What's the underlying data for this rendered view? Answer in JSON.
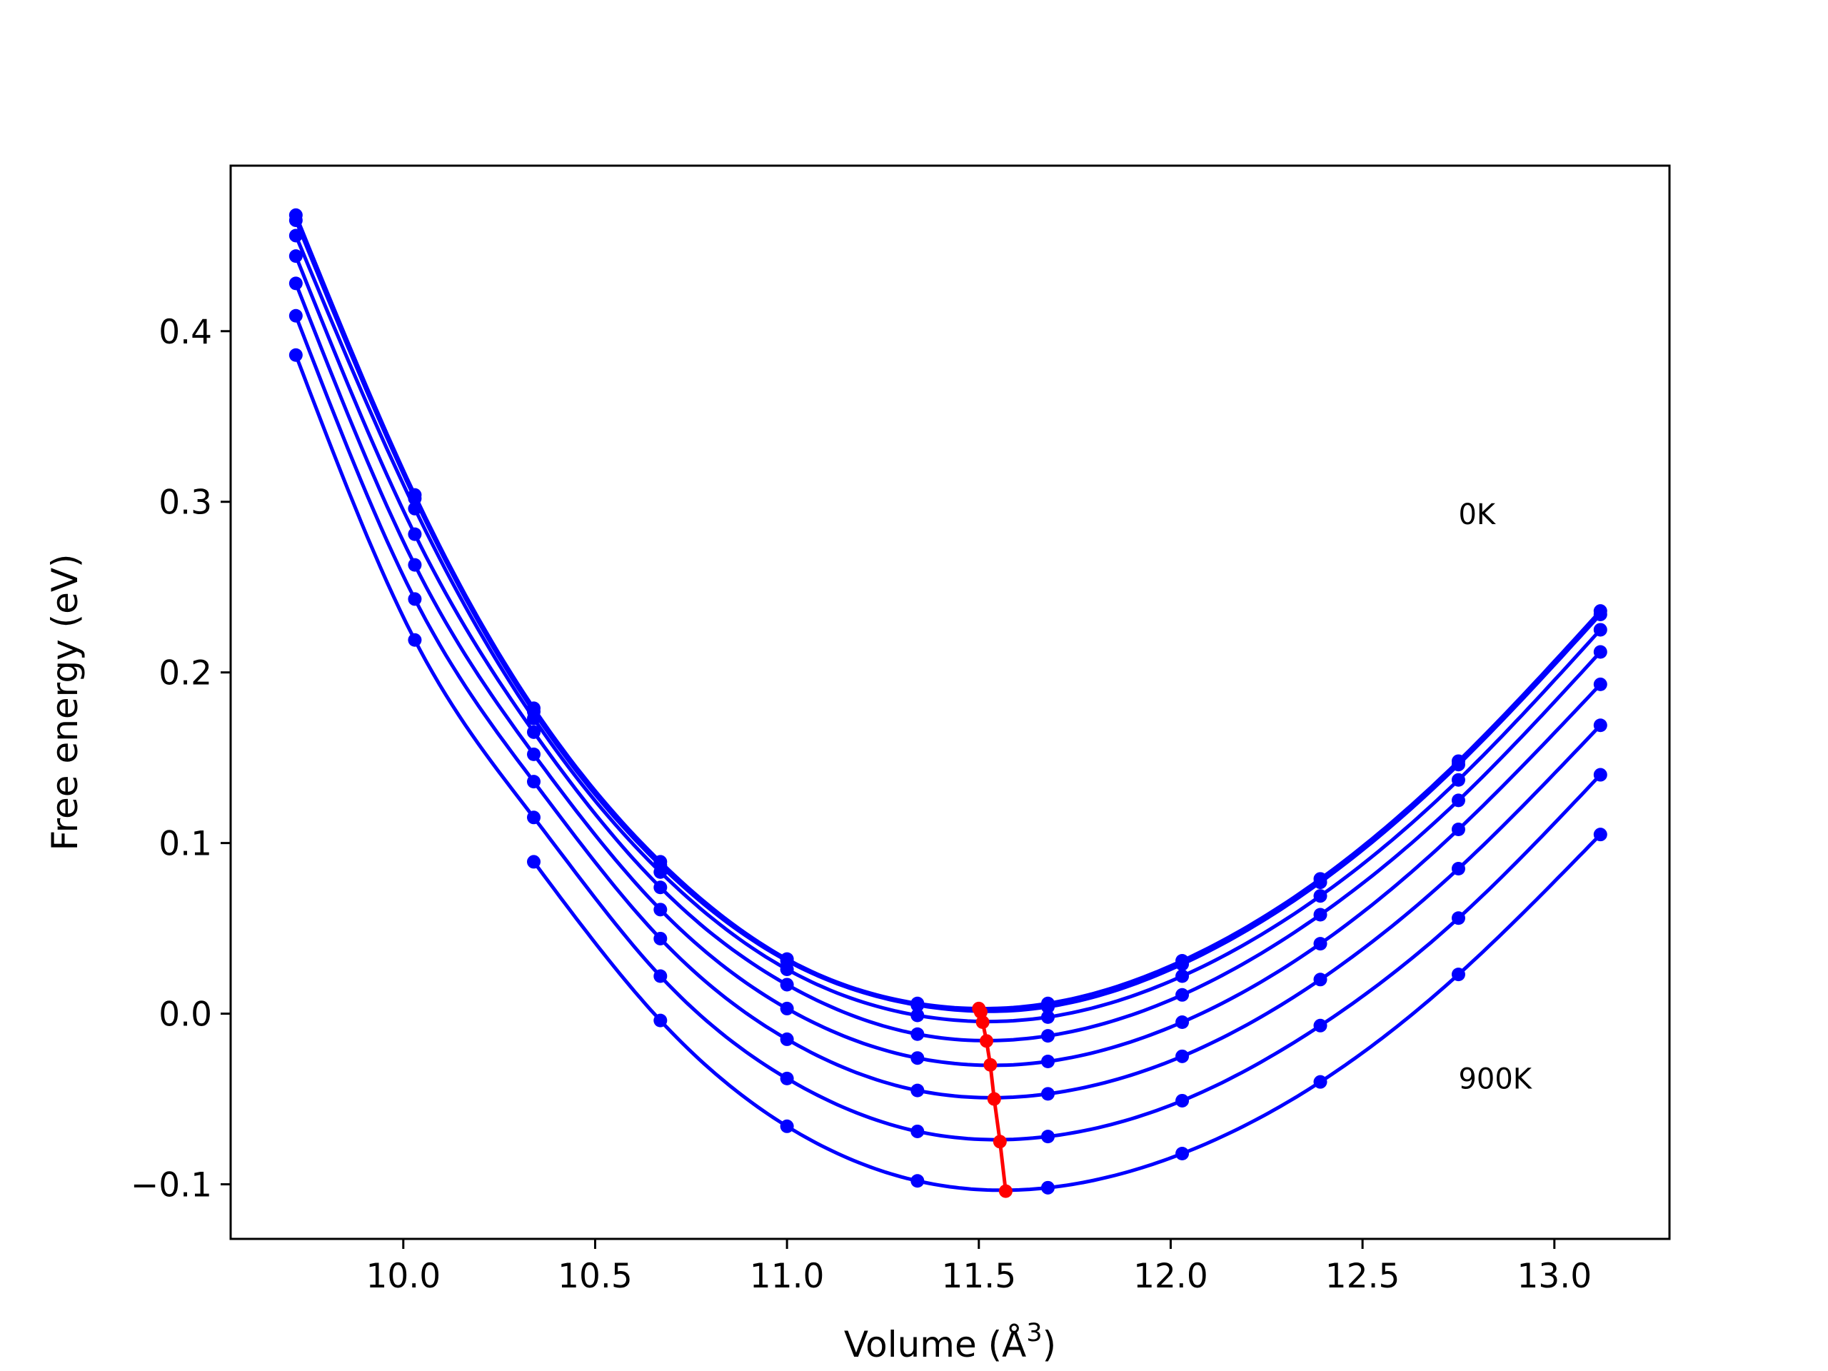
{
  "chart_data": {
    "type": "line",
    "xlabel": "Volume (Å",
    "xlabel_sup": "3",
    "xlabel_suffix": ")",
    "ylabel": "Free energy (eV)",
    "xlim": [
      9.55,
      13.3
    ],
    "ylim": [
      -0.132,
      0.497
    ],
    "xticks": [
      10.0,
      10.5,
      11.0,
      11.5,
      12.0,
      12.5,
      13.0
    ],
    "xtick_labels": [
      "10.0",
      "10.5",
      "11.0",
      "11.5",
      "12.0",
      "12.5",
      "13.0"
    ],
    "yticks": [
      -0.1,
      0.0,
      0.1,
      0.2,
      0.3,
      0.4
    ],
    "ytick_labels": [
      "−0.1",
      "0.0",
      "0.1",
      "0.2",
      "0.3",
      "0.4"
    ],
    "annotations": [
      {
        "text": "0K",
        "x": 12.75,
        "y": 0.287
      },
      {
        "text": "900K",
        "x": 12.75,
        "y": -0.044
      }
    ],
    "volumes": [
      9.72,
      10.03,
      10.34,
      10.67,
      11.0,
      11.34,
      11.68,
      12.03,
      12.39,
      12.75,
      13.12
    ],
    "series": [
      {
        "values": [
          0.468,
          0.304,
          0.179,
          0.089,
          0.032,
          0.006,
          0.006,
          0.031,
          0.079,
          0.148,
          0.236
        ]
      },
      {
        "values": [
          0.465,
          0.302,
          0.177,
          0.087,
          0.031,
          0.005,
          0.004,
          0.029,
          0.077,
          0.146,
          0.234
        ]
      },
      {
        "values": [
          0.456,
          0.296,
          0.173,
          0.083,
          0.026,
          -0.001,
          -0.002,
          0.022,
          0.069,
          0.137,
          0.225
        ]
      },
      {
        "values": [
          0.444,
          0.281,
          0.165,
          0.074,
          0.017,
          -0.012,
          -0.013,
          0.011,
          0.058,
          0.125,
          0.212
        ]
      },
      {
        "values": [
          0.428,
          0.263,
          0.152,
          0.061,
          0.003,
          -0.026,
          -0.028,
          -0.005,
          0.041,
          0.108,
          0.193
        ]
      },
      {
        "values": [
          0.409,
          0.243,
          0.136,
          0.044,
          -0.015,
          -0.045,
          -0.047,
          -0.025,
          0.02,
          0.085,
          0.169
        ]
      },
      {
        "values": [
          0.386,
          0.219,
          0.115,
          0.022,
          -0.038,
          -0.069,
          -0.072,
          -0.051,
          -0.007,
          0.056,
          0.14
        ]
      },
      {
        "values": [
          null,
          null,
          0.089,
          -0.004,
          -0.066,
          -0.098,
          -0.102,
          -0.082,
          -0.04,
          0.023,
          0.105
        ]
      }
    ],
    "minima_line": {
      "x": [
        11.5,
        11.505,
        11.51,
        11.52,
        11.53,
        11.54,
        11.555,
        11.57
      ],
      "y": [
        0.003,
        0.001,
        -0.005,
        -0.016,
        -0.03,
        -0.05,
        -0.075,
        -0.104
      ]
    },
    "colors": {
      "curves": "#0000ff",
      "minima": "#ff0000",
      "frame": "#000000"
    }
  }
}
